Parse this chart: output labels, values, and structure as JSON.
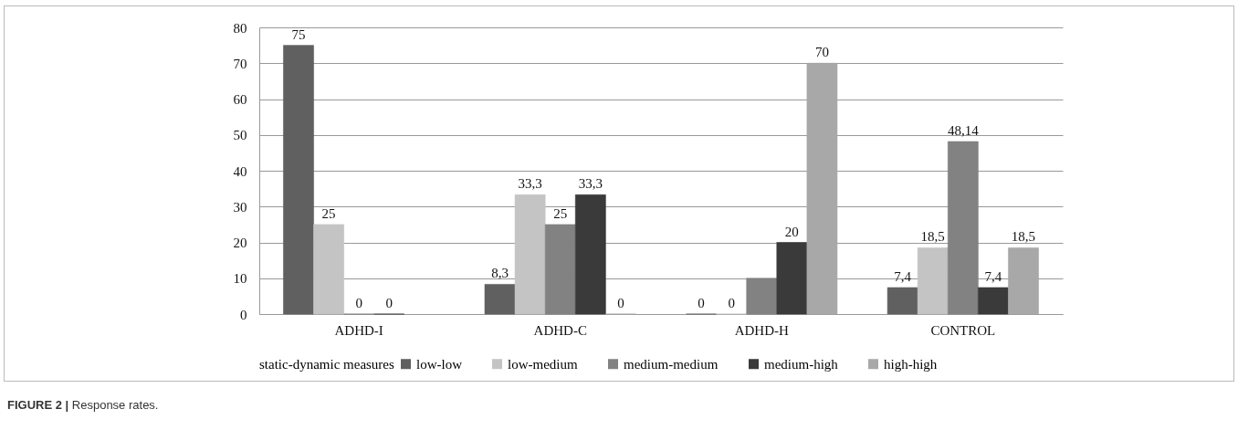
{
  "chart_data": {
    "type": "bar",
    "categories": [
      "ADHD-I",
      "ADHD-C",
      "ADHD-H",
      "CONTROL"
    ],
    "series": [
      {
        "name": "low-low",
        "color": "#606060",
        "values": [
          75,
          8.3,
          0,
          7.4
        ],
        "value_labels": [
          "75",
          "8,3",
          "0",
          "7,4"
        ]
      },
      {
        "name": "low-medium",
        "color": "#c4c4c4",
        "values": [
          25,
          33.3,
          0,
          18.5
        ],
        "value_labels": [
          "25",
          "33,3",
          "0",
          "18,5"
        ]
      },
      {
        "name": "medium-medium",
        "color": "#828282",
        "values": [
          0,
          25,
          10,
          48.14
        ],
        "value_labels": [
          "0",
          "25",
          null,
          "48,14"
        ]
      },
      {
        "name": "medium-high",
        "color": "#3a3a3a",
        "values": [
          0,
          33.3,
          20,
          7.4
        ],
        "value_labels": [
          "0",
          "33,3",
          "20",
          "7,4"
        ]
      },
      {
        "name": "high-high",
        "color": "#a8a8a8",
        "values": [
          null,
          0,
          70,
          18.5
        ],
        "value_labels": [
          null,
          "0",
          "70",
          "18,5"
        ]
      }
    ],
    "legend_title": "static-dynamic measures",
    "legend": "bottom",
    "ylim": [
      0,
      80
    ],
    "yticks": [
      0,
      10,
      20,
      30,
      40,
      50,
      60,
      70,
      80
    ],
    "grid": "y",
    "annotations": [
      "FIGURE 2 | Response rates."
    ]
  }
}
